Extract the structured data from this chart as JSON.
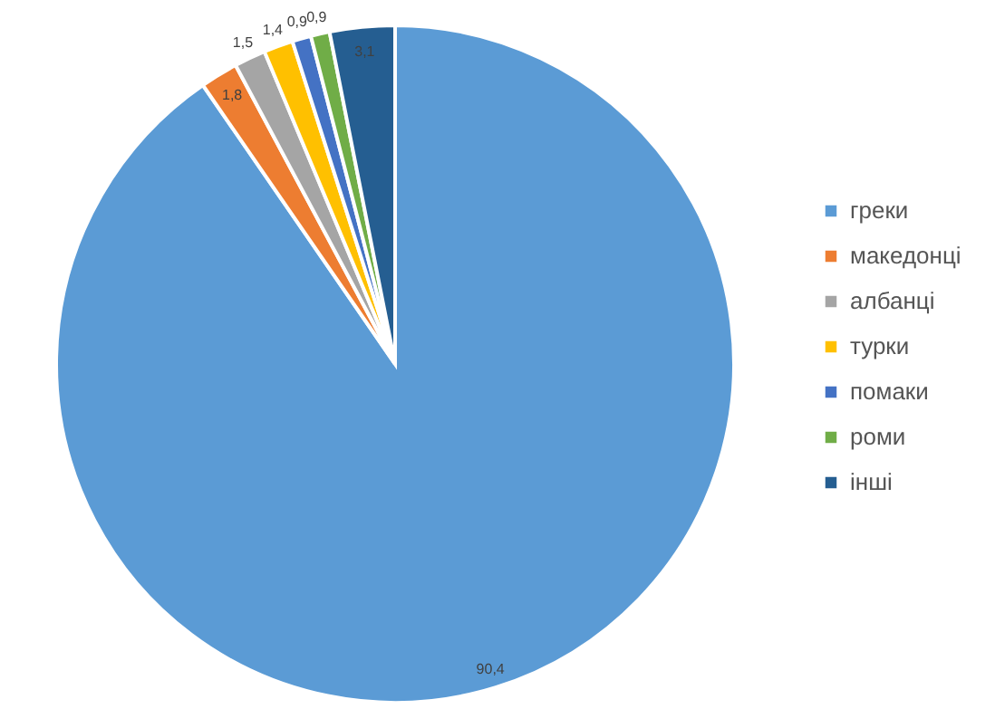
{
  "chart_data": {
    "type": "pie",
    "categories": [
      "греки",
      "македонці",
      "албанці",
      "турки",
      "помаки",
      "роми",
      "інші"
    ],
    "values": [
      90.4,
      1.8,
      1.5,
      1.4,
      0.9,
      0.9,
      3.1
    ],
    "colors": [
      "#5b9bd5",
      "#ed7d31",
      "#a5a5a5",
      "#ffc000",
      "#4472c4",
      "#70ad47",
      "#255e91"
    ],
    "value_labels": [
      "90,4",
      "1,8",
      "1,5",
      "1,4",
      "0,9",
      "0,9",
      "3,1"
    ],
    "legend": "right"
  }
}
